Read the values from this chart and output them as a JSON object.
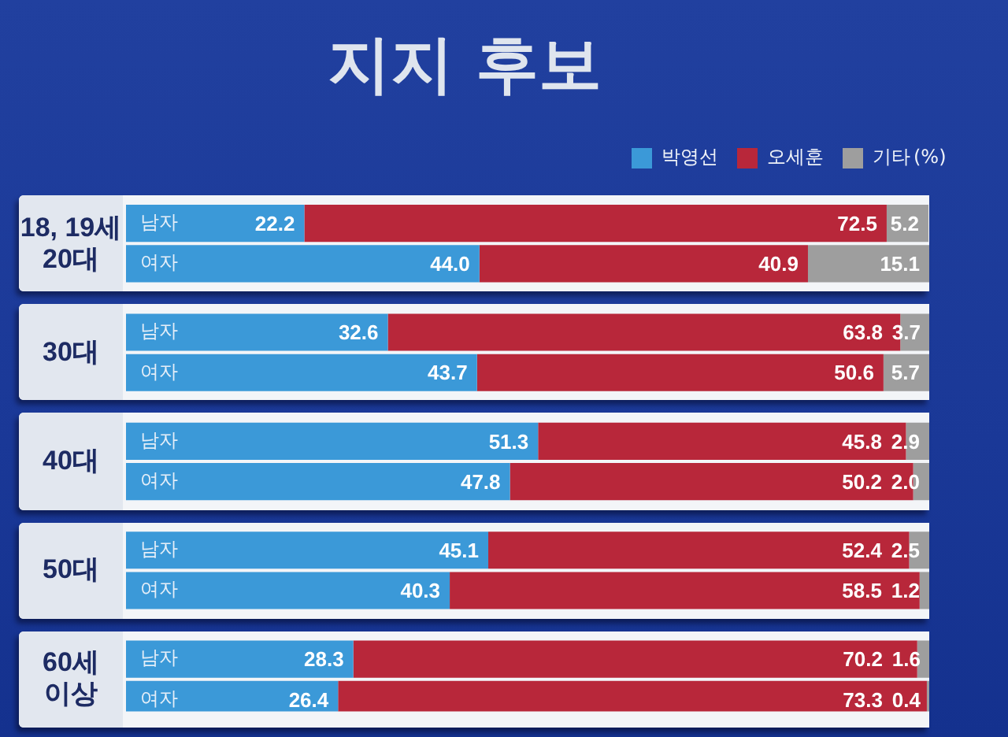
{
  "chart_data": {
    "type": "bar",
    "orientation": "horizontal",
    "stacked": true,
    "title": "지지 후보",
    "legend_title": "(%)",
    "legend": "top right",
    "tick_labels": "y",
    "xlim": [
      0,
      100
    ],
    "categories": [
      "남자",
      "여자",
      "남자",
      "여자",
      "남자",
      "여자",
      "남자",
      "여자",
      "남자",
      "여자"
    ],
    "annotations": [
      "18, 19세 20대",
      "30대",
      "40대",
      "50대",
      "60세 이상"
    ],
    "series": [
      {
        "name": "박영선",
        "color": "#3b99d8",
        "values": [
          22.2,
          44.0,
          32.6,
          43.7,
          51.3,
          47.8,
          45.1,
          40.3,
          28.3,
          26.4
        ],
        "value_labels": [
          "22.2",
          "44.0",
          "32.6",
          "43.7",
          "51.3",
          "47.8",
          "45.1",
          "40.3",
          "28.3",
          "26.4"
        ]
      },
      {
        "name": "오세훈",
        "color": "#b8273a",
        "values": [
          72.5,
          40.9,
          63.8,
          50.6,
          45.8,
          50.2,
          52.4,
          58.5,
          70.2,
          73.3
        ],
        "value_labels": [
          "72.5",
          "40.9",
          "63.8",
          "50.6",
          "45.8",
          "50.2",
          "52.4",
          "58.5",
          "70.2",
          "73.3"
        ]
      },
      {
        "name": "기타",
        "color": "#9e9e9e",
        "values": [
          5.2,
          15.1,
          3.7,
          5.7,
          2.9,
          2.0,
          2.5,
          1.2,
          1.6,
          0.4
        ],
        "value_labels": [
          "5.2",
          "15.1",
          "3.7",
          "5.7",
          "2.9",
          "2.0",
          "2.5",
          "1.2",
          "1.6",
          "0.4"
        ]
      }
    ]
  }
}
